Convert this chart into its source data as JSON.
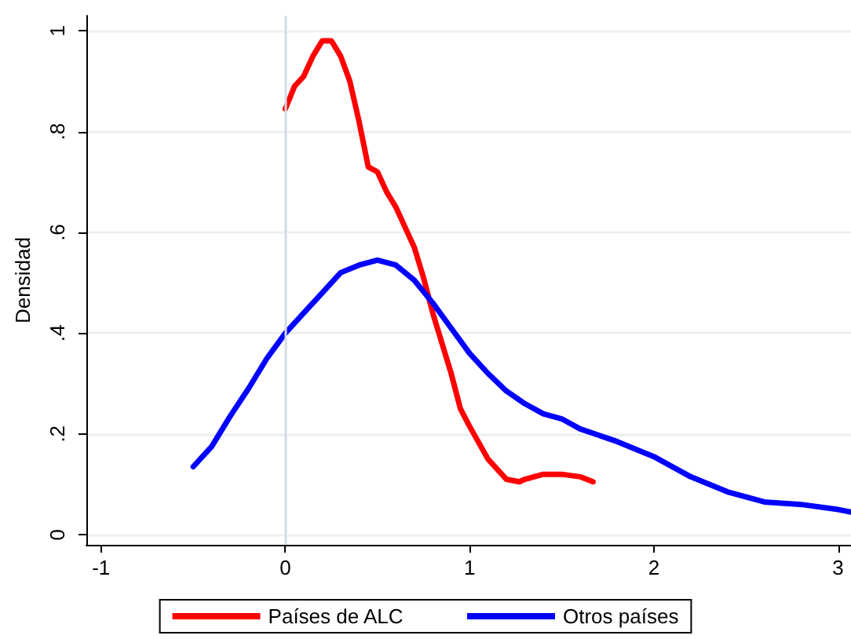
{
  "chart_data": {
    "type": "line",
    "ylabel": "Densidad",
    "xlim": [
      -1.08,
      3.07
    ],
    "ylim": [
      -0.02,
      1.03
    ],
    "xticks": [
      -1,
      0,
      1,
      2,
      3
    ],
    "yticks": [
      0,
      {
        "value": 0.2,
        "label": ".2"
      },
      {
        "value": 0.4,
        "label": ".4"
      },
      {
        "value": 0.6,
        "label": ".6"
      },
      {
        "value": 0.8,
        "label": ".8"
      },
      1
    ],
    "grid": "y",
    "legend": "bottom",
    "marker": "none",
    "line_style": "solid",
    "ref_lines": [
      {
        "axis": "x",
        "value": 0,
        "color": "#d3dbe4"
      }
    ],
    "series": [
      {
        "name": "Países de ALC",
        "color": "#ff0000",
        "x": [
          0,
          0.05,
          0.1,
          0.15,
          0.2,
          0.25,
          0.3,
          0.35,
          0.4,
          0.45,
          0.5,
          0.55,
          0.6,
          0.65,
          0.7,
          0.75,
          0.8,
          0.85,
          0.9,
          0.95,
          1.0,
          1.1,
          1.2,
          1.27,
          1.3,
          1.4,
          1.5,
          1.6,
          1.67
        ],
        "values": [
          0.845,
          0.89,
          0.91,
          0.95,
          0.98,
          0.98,
          0.95,
          0.9,
          0.82,
          0.73,
          0.72,
          0.68,
          0.65,
          0.61,
          0.57,
          0.51,
          0.44,
          0.38,
          0.32,
          0.25,
          0.215,
          0.15,
          0.11,
          0.105,
          0.11,
          0.12,
          0.12,
          0.115,
          0.105
        ]
      },
      {
        "name": "Otros países",
        "color": "#0000ff",
        "x": [
          -0.5,
          -0.4,
          -0.3,
          -0.2,
          -0.1,
          0,
          0.1,
          0.2,
          0.3,
          0.4,
          0.5,
          0.6,
          0.7,
          0.8,
          0.9,
          1.0,
          1.1,
          1.2,
          1.3,
          1.4,
          1.5,
          1.6,
          1.8,
          2.0,
          2.2,
          2.4,
          2.6,
          2.8,
          3.0,
          3.07
        ],
        "values": [
          0.135,
          0.175,
          0.235,
          0.29,
          0.35,
          0.4,
          0.44,
          0.48,
          0.52,
          0.535,
          0.545,
          0.535,
          0.505,
          0.46,
          0.41,
          0.36,
          0.32,
          0.285,
          0.26,
          0.24,
          0.23,
          0.21,
          0.185,
          0.155,
          0.115,
          0.085,
          0.065,
          0.06,
          0.05,
          0.045
        ]
      }
    ]
  }
}
